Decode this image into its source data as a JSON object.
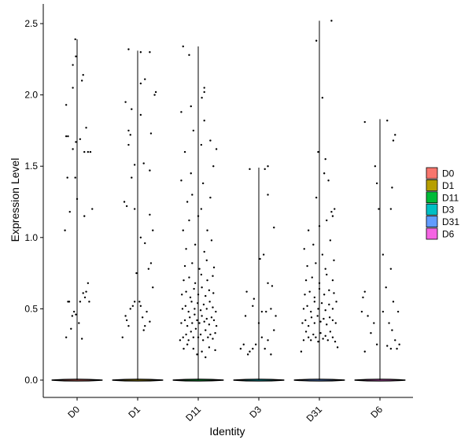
{
  "chart_data": {
    "type": "violin-jitter",
    "xlabel": "Identity",
    "ylabel": "Expression Level",
    "ylim": [
      -0.1,
      2.6
    ],
    "yticks": [
      0.0,
      0.5,
      1.0,
      1.5,
      2.0,
      2.5
    ],
    "ytick_labels": [
      "0.0",
      "0.5",
      "1.0",
      "1.5",
      "2.0",
      "2.5"
    ],
    "categories": [
      "D0",
      "D1",
      "D11",
      "D3",
      "D31",
      "D6"
    ],
    "violin_max": [
      2.39,
      2.31,
      2.34,
      1.49,
      2.52,
      1.83
    ],
    "legend": {
      "position": "right",
      "entries": [
        {
          "label": "D0",
          "color": "#F8766D"
        },
        {
          "label": "D1",
          "color": "#B79F00"
        },
        {
          "label": "D11",
          "color": "#00BA38"
        },
        {
          "label": "D3",
          "color": "#00BFC4"
        },
        {
          "label": "D31",
          "color": "#619CFF"
        },
        {
          "label": "D6",
          "color": "#F564E3"
        }
      ]
    },
    "nonzero_points": {
      "D0": [
        [
          -0.18,
          0.3
        ],
        [
          -0.15,
          0.55
        ],
        [
          -0.13,
          0.55
        ],
        [
          -0.1,
          0.36
        ],
        [
          -0.08,
          0.45
        ],
        [
          -0.05,
          0.48
        ],
        [
          -0.02,
          0.46
        ],
        [
          0.03,
          0.4
        ],
        [
          0.05,
          0.55
        ],
        [
          0.1,
          0.61
        ],
        [
          0.13,
          0.58
        ],
        [
          0.15,
          0.62
        ],
        [
          0.18,
          0.68
        ],
        [
          0.2,
          0.55
        ],
        [
          0.08,
          0.29
        ],
        [
          -0.2,
          1.05
        ],
        [
          -0.12,
          1.18
        ],
        [
          -0.16,
          1.42
        ],
        [
          -0.03,
          1.42
        ],
        [
          0.0,
          1.27
        ],
        [
          0.12,
          1.15
        ],
        [
          0.25,
          1.2
        ],
        [
          -0.18,
          1.71
        ],
        [
          -0.15,
          1.71
        ],
        [
          -0.07,
          1.62
        ],
        [
          -0.02,
          1.67
        ],
        [
          0.05,
          1.69
        ],
        [
          0.12,
          1.6
        ],
        [
          0.18,
          1.6
        ],
        [
          0.22,
          1.6
        ],
        [
          0.15,
          1.77
        ],
        [
          -0.18,
          1.93
        ],
        [
          -0.07,
          2.05
        ],
        [
          0.08,
          2.1
        ],
        [
          0.1,
          2.14
        ],
        [
          -0.07,
          2.21
        ],
        [
          -0.02,
          2.27
        ],
        [
          -0.03,
          2.39
        ]
      ],
      "D1": [
        [
          -0.25,
          0.3
        ],
        [
          -0.2,
          0.45
        ],
        [
          -0.18,
          0.42
        ],
        [
          -0.12,
          0.5
        ],
        [
          -0.08,
          0.52
        ],
        [
          -0.05,
          0.55
        ],
        [
          0.05,
          0.52
        ],
        [
          0.1,
          0.35
        ],
        [
          0.15,
          0.48
        ],
        [
          0.2,
          0.41
        ],
        [
          0.25,
          0.65
        ],
        [
          0.18,
          0.78
        ],
        [
          0.22,
          0.82
        ],
        [
          -0.02,
          0.75
        ],
        [
          0.03,
          0.55
        ],
        [
          0.08,
          0.44
        ],
        [
          0.12,
          0.38
        ],
        [
          -0.15,
          0.38
        ],
        [
          -0.22,
          1.25
        ],
        [
          -0.18,
          1.22
        ],
        [
          -0.1,
          1.42
        ],
        [
          -0.05,
          1.2
        ],
        [
          0.05,
          1.0
        ],
        [
          0.12,
          0.96
        ],
        [
          0.2,
          1.16
        ],
        [
          0.25,
          1.05
        ],
        [
          -0.05,
          1.51
        ],
        [
          0.1,
          1.52
        ],
        [
          0.2,
          1.47
        ],
        [
          -0.15,
          1.65
        ],
        [
          -0.15,
          1.75
        ],
        [
          -0.12,
          1.72
        ],
        [
          0.05,
          1.86
        ],
        [
          0.22,
          1.73
        ],
        [
          -0.2,
          1.95
        ],
        [
          -0.1,
          1.9
        ],
        [
          0.05,
          2.08
        ],
        [
          0.12,
          2.11
        ],
        [
          0.28,
          2.0
        ],
        [
          0.3,
          2.02
        ],
        [
          0.05,
          2.3
        ],
        [
          0.2,
          2.3
        ],
        [
          -0.15,
          2.32
        ]
      ],
      "D11": [
        [
          -0.3,
          0.28
        ],
        [
          -0.25,
          0.3
        ],
        [
          -0.2,
          0.32
        ],
        [
          -0.16,
          0.28
        ],
        [
          -0.12,
          0.34
        ],
        [
          -0.08,
          0.3
        ],
        [
          -0.04,
          0.36
        ],
        [
          0.0,
          0.3
        ],
        [
          0.04,
          0.32
        ],
        [
          0.08,
          0.28
        ],
        [
          0.12,
          0.35
        ],
        [
          0.16,
          0.3
        ],
        [
          0.2,
          0.32
        ],
        [
          0.24,
          0.29
        ],
        [
          0.28,
          0.33
        ],
        [
          -0.28,
          0.4
        ],
        [
          -0.22,
          0.42
        ],
        [
          -0.18,
          0.38
        ],
        [
          -0.14,
          0.44
        ],
        [
          -0.1,
          0.4
        ],
        [
          -0.06,
          0.46
        ],
        [
          -0.02,
          0.42
        ],
        [
          0.02,
          0.4
        ],
        [
          0.06,
          0.45
        ],
        [
          0.1,
          0.41
        ],
        [
          0.14,
          0.43
        ],
        [
          0.18,
          0.39
        ],
        [
          0.22,
          0.44
        ],
        [
          0.26,
          0.42
        ],
        [
          0.3,
          0.38
        ],
        [
          -0.26,
          0.5
        ],
        [
          -0.21,
          0.52
        ],
        [
          -0.16,
          0.48
        ],
        [
          -0.11,
          0.55
        ],
        [
          -0.06,
          0.5
        ],
        [
          -0.01,
          0.54
        ],
        [
          0.04,
          0.49
        ],
        [
          0.09,
          0.53
        ],
        [
          0.14,
          0.5
        ],
        [
          0.19,
          0.55
        ],
        [
          0.24,
          0.51
        ],
        [
          0.29,
          0.48
        ],
        [
          -0.27,
          0.6
        ],
        [
          -0.2,
          0.62
        ],
        [
          -0.13,
          0.58
        ],
        [
          -0.07,
          0.64
        ],
        [
          0.0,
          0.6
        ],
        [
          0.06,
          0.65
        ],
        [
          0.12,
          0.59
        ],
        [
          0.18,
          0.63
        ],
        [
          0.25,
          0.61
        ],
        [
          -0.24,
          0.7
        ],
        [
          -0.15,
          0.72
        ],
        [
          -0.05,
          0.68
        ],
        [
          0.05,
          0.74
        ],
        [
          0.15,
          0.7
        ],
        [
          0.24,
          0.73
        ],
        [
          -0.22,
          0.8
        ],
        [
          -0.1,
          0.82
        ],
        [
          0.02,
          0.78
        ],
        [
          0.14,
          0.84
        ],
        [
          0.26,
          0.79
        ],
        [
          -0.18,
          0.25
        ],
        [
          -0.08,
          0.22
        ],
        [
          0.06,
          0.2
        ],
        [
          0.18,
          0.23
        ],
        [
          0.28,
          0.21
        ],
        [
          -0.24,
          0.22
        ],
        [
          -0.02,
          0.18
        ],
        [
          0.12,
          0.16
        ],
        [
          -0.2,
          0.92
        ],
        [
          -0.05,
          0.95
        ],
        [
          0.1,
          0.9
        ],
        [
          0.22,
          0.98
        ],
        [
          -0.25,
          1.05
        ],
        [
          -0.15,
          1.12
        ],
        [
          0.0,
          1.15
        ],
        [
          0.15,
          1.05
        ],
        [
          -0.18,
          1.25
        ],
        [
          -0.1,
          1.3
        ],
        [
          0.05,
          1.2
        ],
        [
          0.2,
          1.28
        ],
        [
          -0.28,
          1.4
        ],
        [
          -0.12,
          1.45
        ],
        [
          0.08,
          1.38
        ],
        [
          0.25,
          1.5
        ],
        [
          -0.22,
          1.6
        ],
        [
          0.05,
          1.65
        ],
        [
          0.2,
          1.68
        ],
        [
          -0.08,
          1.75
        ],
        [
          0.3,
          1.62
        ],
        [
          -0.28,
          1.88
        ],
        [
          -0.12,
          1.92
        ],
        [
          0.1,
          1.82
        ],
        [
          0.06,
          1.98
        ],
        [
          0.1,
          2.02
        ],
        [
          0.1,
          2.05
        ],
        [
          -0.25,
          2.34
        ],
        [
          -0.15,
          2.28
        ]
      ],
      "D3": [
        [
          -0.3,
          0.22
        ],
        [
          -0.25,
          0.25
        ],
        [
          -0.18,
          0.18
        ],
        [
          -0.15,
          0.2
        ],
        [
          -0.1,
          0.22
        ],
        [
          -0.05,
          0.25
        ],
        [
          0.05,
          0.3
        ],
        [
          0.1,
          0.22
        ],
        [
          0.15,
          0.28
        ],
        [
          0.2,
          0.18
        ],
        [
          0.25,
          0.35
        ],
        [
          -0.22,
          0.45
        ],
        [
          -0.1,
          0.52
        ],
        [
          0.0,
          0.4
        ],
        [
          0.12,
          0.48
        ],
        [
          0.2,
          0.5
        ],
        [
          0.28,
          0.45
        ],
        [
          -0.2,
          0.62
        ],
        [
          -0.08,
          0.57
        ],
        [
          0.05,
          0.48
        ],
        [
          0.15,
          0.68
        ],
        [
          0.22,
          0.66
        ],
        [
          0.08,
          0.88
        ],
        [
          0.02,
          0.85
        ],
        [
          0.25,
          1.07
        ],
        [
          0.15,
          1.3
        ],
        [
          0.1,
          1.48
        ],
        [
          0.15,
          1.5
        ],
        [
          -0.15,
          1.48
        ]
      ],
      "D31": [
        [
          -0.3,
          0.2
        ],
        [
          -0.26,
          0.28
        ],
        [
          -0.22,
          0.34
        ],
        [
          -0.18,
          0.3
        ],
        [
          -0.14,
          0.28
        ],
        [
          -0.1,
          0.32
        ],
        [
          -0.06,
          0.3
        ],
        [
          -0.02,
          0.27
        ],
        [
          0.02,
          0.33
        ],
        [
          0.06,
          0.29
        ],
        [
          0.1,
          0.31
        ],
        [
          0.14,
          0.28
        ],
        [
          0.18,
          0.34
        ],
        [
          0.22,
          0.3
        ],
        [
          0.26,
          0.27
        ],
        [
          0.3,
          0.23
        ],
        [
          -0.28,
          0.4
        ],
        [
          -0.23,
          0.42
        ],
        [
          -0.18,
          0.38
        ],
        [
          -0.13,
          0.44
        ],
        [
          -0.08,
          0.4
        ],
        [
          -0.03,
          0.45
        ],
        [
          0.02,
          0.41
        ],
        [
          0.07,
          0.43
        ],
        [
          0.12,
          0.39
        ],
        [
          0.17,
          0.44
        ],
        [
          0.22,
          0.42
        ],
        [
          0.27,
          0.4
        ],
        [
          -0.26,
          0.5
        ],
        [
          -0.2,
          0.52
        ],
        [
          -0.14,
          0.48
        ],
        [
          -0.08,
          0.55
        ],
        [
          -0.02,
          0.5
        ],
        [
          0.04,
          0.54
        ],
        [
          0.1,
          0.49
        ],
        [
          0.16,
          0.53
        ],
        [
          0.22,
          0.5
        ],
        [
          0.28,
          0.55
        ],
        [
          -0.24,
          0.6
        ],
        [
          -0.16,
          0.62
        ],
        [
          -0.08,
          0.58
        ],
        [
          0.0,
          0.64
        ],
        [
          0.08,
          0.6
        ],
        [
          0.16,
          0.63
        ],
        [
          0.24,
          0.61
        ],
        [
          -0.22,
          0.7
        ],
        [
          -0.12,
          0.72
        ],
        [
          0.0,
          0.68
        ],
        [
          0.12,
          0.74
        ],
        [
          0.22,
          0.7
        ],
        [
          -0.2,
          0.8
        ],
        [
          -0.06,
          0.82
        ],
        [
          0.1,
          0.78
        ],
        [
          0.24,
          0.84
        ],
        [
          -0.25,
          0.92
        ],
        [
          -0.1,
          0.95
        ],
        [
          0.05,
          0.88
        ],
        [
          0.18,
          0.98
        ],
        [
          -0.18,
          1.05
        ],
        [
          0.0,
          1.08
        ],
        [
          0.12,
          1.12
        ],
        [
          0.2,
          1.18
        ],
        [
          0.25,
          1.2
        ],
        [
          0.22,
          1.15
        ],
        [
          -0.05,
          1.28
        ],
        [
          0.15,
          1.4
        ],
        [
          0.08,
          1.45
        ],
        [
          -0.02,
          1.6
        ],
        [
          0.1,
          1.55
        ],
        [
          0.05,
          1.98
        ],
        [
          -0.05,
          2.38
        ],
        [
          0.2,
          2.52
        ]
      ],
      "D6": [
        [
          -0.3,
          0.48
        ],
        [
          -0.28,
          0.58
        ],
        [
          -0.25,
          0.62
        ],
        [
          -0.2,
          0.45
        ],
        [
          -0.15,
          0.33
        ],
        [
          -0.1,
          0.4
        ],
        [
          -0.05,
          0.25
        ],
        [
          0.05,
          0.48
        ],
        [
          0.1,
          0.65
        ],
        [
          0.15,
          0.4
        ],
        [
          0.2,
          0.35
        ],
        [
          0.25,
          0.28
        ],
        [
          0.28,
          0.22
        ],
        [
          0.32,
          0.25
        ],
        [
          0.3,
          0.48
        ],
        [
          0.22,
          0.55
        ],
        [
          -0.25,
          0.2
        ],
        [
          0.18,
          0.22
        ],
        [
          0.12,
          0.24
        ],
        [
          0.05,
          0.88
        ],
        [
          0.18,
          0.78
        ],
        [
          -0.02,
          1.2
        ],
        [
          -0.05,
          1.38
        ],
        [
          0.18,
          1.2
        ],
        [
          0.2,
          1.35
        ],
        [
          -0.08,
          1.5
        ],
        [
          0.22,
          1.68
        ],
        [
          0.25,
          1.72
        ],
        [
          0.12,
          1.82
        ],
        [
          -0.25,
          1.81
        ]
      ]
    }
  }
}
